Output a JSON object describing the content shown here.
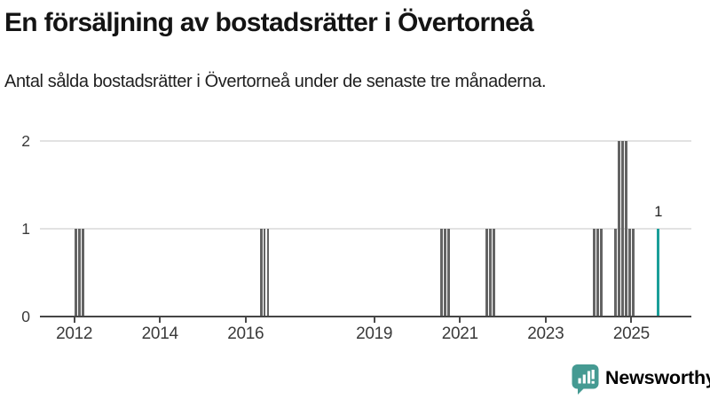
{
  "header": {
    "title": "En försäljning av bostadsrätter i Övertorneå",
    "subtitle": "Antal sålda bostadsrätter i Övertorneå under de senaste tre månaderna."
  },
  "chart_data": {
    "type": "bar",
    "title": "En försäljning av bostadsrätter i Övertorneå",
    "subtitle": "Antal sålda bostadsrätter i Övertorneå under de senaste tre månaderna.",
    "xlabel": "",
    "ylabel": "",
    "xlim": [
      2011.2,
      2026.4
    ],
    "ylim": [
      0,
      2.1
    ],
    "grid": "horizontal",
    "legend": null,
    "x_ticks": [
      {
        "label": "2012",
        "year": 2012
      },
      {
        "label": "2014",
        "year": 2014
      },
      {
        "label": "2016",
        "year": 2016
      },
      {
        "label": "2019",
        "year": 2019
      },
      {
        "label": "2021",
        "year": 2021
      },
      {
        "label": "2023",
        "year": 2023
      },
      {
        "label": "2025",
        "year": 2025
      }
    ],
    "y_ticks": [
      {
        "label": "0",
        "value": 0
      },
      {
        "label": "1",
        "value": 1
      },
      {
        "label": "2",
        "value": 2
      }
    ],
    "colors": {
      "bar": "#646464",
      "highlight": "#1a9e99",
      "gridline": "#e2e2e2",
      "axis": "#454545",
      "tick_text": "#3a3a3a"
    },
    "bars": [
      {
        "x": 2012.04,
        "y": 1
      },
      {
        "x": 2012.12,
        "y": 1
      },
      {
        "x": 2012.21,
        "y": 1
      },
      {
        "x": 2016.36,
        "y": 1
      },
      {
        "x": 2016.44,
        "y": 1
      },
      {
        "x": 2016.52,
        "y": 1
      },
      {
        "x": 2020.57,
        "y": 1
      },
      {
        "x": 2020.65,
        "y": 1
      },
      {
        "x": 2020.74,
        "y": 1
      },
      {
        "x": 2021.63,
        "y": 1
      },
      {
        "x": 2021.71,
        "y": 1
      },
      {
        "x": 2021.79,
        "y": 1
      },
      {
        "x": 2024.13,
        "y": 1
      },
      {
        "x": 2024.21,
        "y": 1
      },
      {
        "x": 2024.3,
        "y": 1
      },
      {
        "x": 2024.63,
        "y": 1
      },
      {
        "x": 2024.71,
        "y": 2
      },
      {
        "x": 2024.79,
        "y": 2
      },
      {
        "x": 2024.88,
        "y": 2
      },
      {
        "x": 2024.96,
        "y": 1
      },
      {
        "x": 2025.04,
        "y": 1
      },
      {
        "x": 2025.63,
        "y": 1,
        "highlight": true
      }
    ],
    "annotation": {
      "text": "1",
      "x": 2025.63,
      "y": 1
    }
  },
  "branding": {
    "logo_text": "Newsworthy",
    "logo_color": "#459a92",
    "logo_icon": "newsworthy-speech-bubble-chart-icon"
  }
}
